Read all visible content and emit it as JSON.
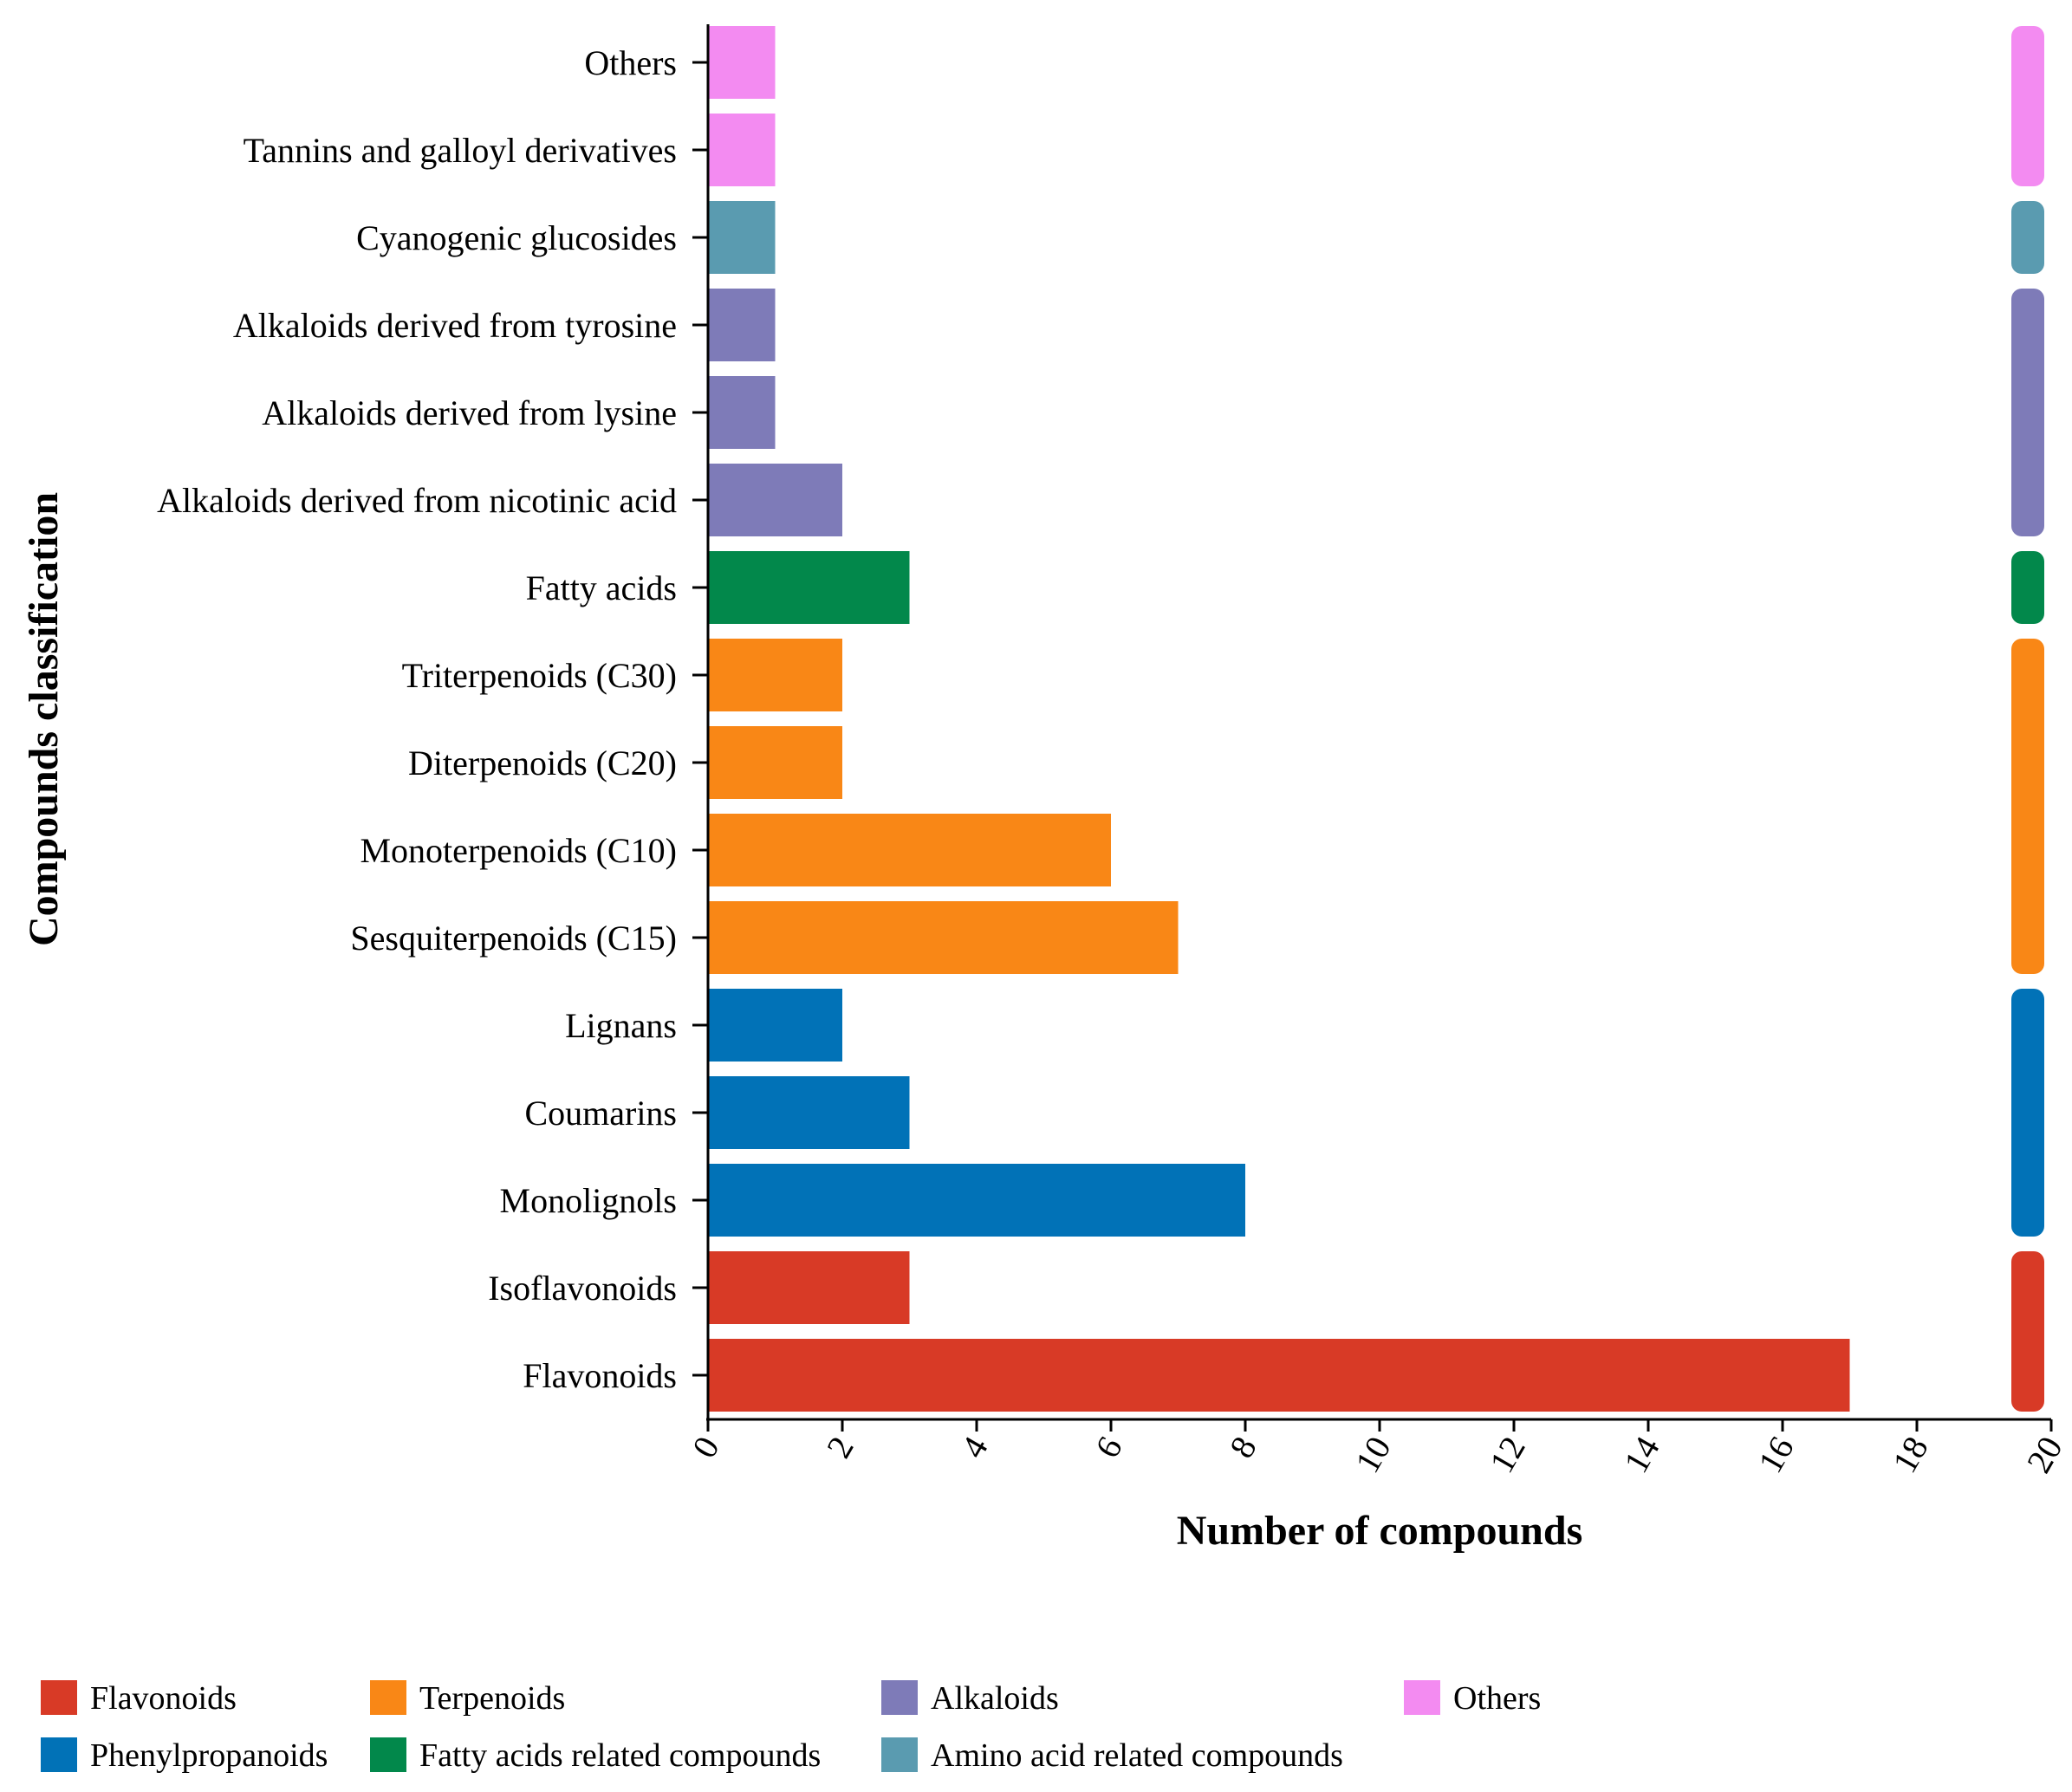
{
  "chart_data": {
    "type": "bar",
    "orientation": "horizontal",
    "categories": [
      "Flavonoids",
      "Isoflavonoids",
      "Monolignols",
      "Coumarins",
      "Lignans",
      "Sesquiterpenoids (C15)",
      "Monoterpenoids (C10)",
      "Diterpenoids (C20)",
      "Triterpenoids (C30)",
      "Fatty acids",
      "Alkaloids derived from nicotinic acid",
      "Alkaloids derived from lysine",
      "Alkaloids derived from tyrosine",
      "Cyanogenic glucosides",
      "Tannins and galloyl derivatives",
      "Others"
    ],
    "values": [
      17,
      3,
      8,
      3,
      2,
      7,
      6,
      2,
      2,
      3,
      2,
      1,
      1,
      1,
      1,
      1
    ],
    "groups": [
      "Flavonoids",
      "Flavonoids",
      "Phenylpropanoids",
      "Phenylpropanoids",
      "Phenylpropanoids",
      "Terpenoids",
      "Terpenoids",
      "Terpenoids",
      "Terpenoids",
      "Fatty acids related compounds",
      "Alkaloids",
      "Alkaloids",
      "Alkaloids",
      "Amino acid related compounds",
      "Others",
      "Others"
    ],
    "xlabel": "Number of compounds",
    "ylabel": "Compounds classification",
    "xlim": [
      0,
      20
    ],
    "xticks": [
      "0",
      "2",
      "4",
      "6",
      "8",
      "10",
      "12",
      "14",
      "16",
      "18",
      "20"
    ],
    "grid": false,
    "legend_position": "bottom",
    "legend": [
      {
        "name": "Flavonoids",
        "color": "#d83a26"
      },
      {
        "name": "Terpenoids",
        "color": "#f98716"
      },
      {
        "name": "Alkaloids",
        "color": "#7e7bb8"
      },
      {
        "name": "Others",
        "color": "#f38bf1"
      },
      {
        "name": "Phenylpropanoids",
        "color": "#0172b7"
      },
      {
        "name": "Fatty acids related compounds",
        "color": "#02884b"
      },
      {
        "name": "Amino acid related compounds",
        "color": "#5a9bb0"
      }
    ]
  }
}
